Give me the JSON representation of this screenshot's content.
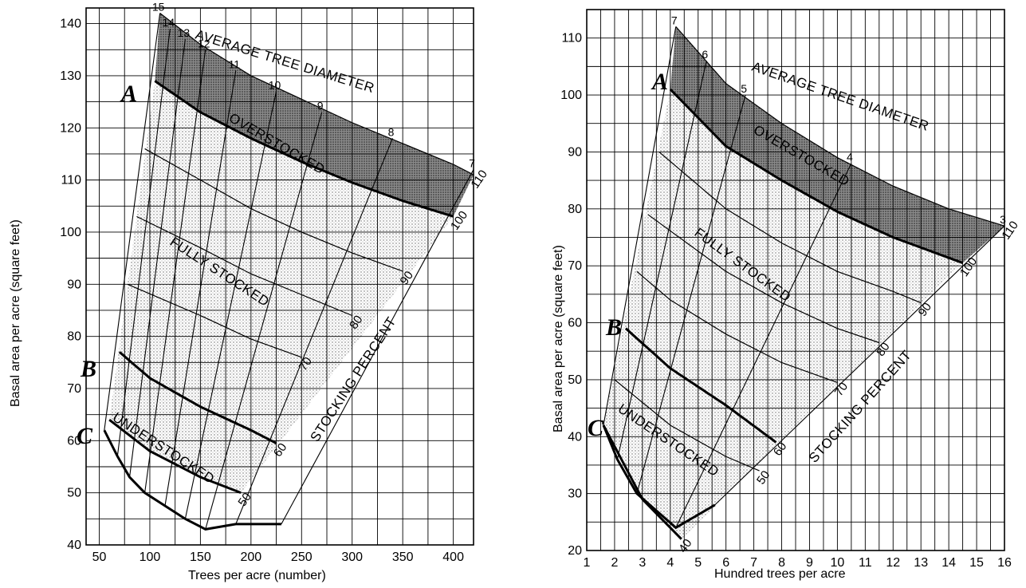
{
  "chart_data": [
    {
      "type": "line",
      "xlabel": "Trees per acre (number)",
      "ylabel": "Basal area per acre (square feet)",
      "xlim": [
        37,
        420
      ],
      "ylim": [
        40,
        143
      ],
      "xticks": [
        50,
        100,
        150,
        200,
        250,
        300,
        350,
        400
      ],
      "yticks": [
        40,
        50,
        60,
        70,
        80,
        90,
        100,
        110,
        120,
        130,
        140
      ],
      "stocking_lines": [
        {
          "name": "110",
          "x": [
            110,
            150,
            200,
            250,
            300,
            350,
            400,
            420
          ],
          "y": [
            142,
            136,
            130,
            125.5,
            121,
            117,
            113,
            111
          ]
        },
        {
          "name": "100",
          "x": [
            105,
            150,
            200,
            250,
            300,
            350,
            400
          ],
          "y": [
            129,
            123,
            118,
            113.5,
            109.5,
            106,
            103
          ]
        },
        {
          "name": "90",
          "x": [
            95,
            150,
            200,
            250,
            300,
            350
          ],
          "y": [
            116,
            110,
            104.5,
            100,
            96,
            92.5
          ]
        },
        {
          "name": "80",
          "x": [
            87,
            150,
            200,
            250,
            300
          ],
          "y": [
            103,
            97,
            92,
            88,
            84
          ]
        },
        {
          "name": "70",
          "x": [
            78,
            150,
            200,
            250
          ],
          "y": [
            90,
            84,
            79.5,
            76
          ]
        },
        {
          "name": "60",
          "x": [
            70,
            100,
            150,
            200,
            225
          ],
          "y": [
            77,
            72,
            66.5,
            62,
            59.5
          ]
        },
        {
          "name": "50",
          "x": [
            60,
            100,
            150,
            190
          ],
          "y": [
            64,
            58,
            53,
            50
          ]
        }
      ],
      "diameter_lines": [
        {
          "name": "15",
          "x": [
            110,
            55
          ],
          "y": [
            142,
            62
          ]
        },
        {
          "name": "14",
          "x": [
            120,
            68
          ],
          "y": [
            139,
            57
          ]
        },
        {
          "name": "13",
          "x": [
            135,
            80
          ],
          "y": [
            137,
            53
          ]
        },
        {
          "name": "12",
          "x": [
            155,
            95
          ],
          "y": [
            135,
            50
          ]
        },
        {
          "name": "11",
          "x": [
            185,
            115
          ],
          "y": [
            131,
            47.5
          ]
        },
        {
          "name": "10",
          "x": [
            225,
            135
          ],
          "y": [
            127,
            45
          ]
        },
        {
          "name": "9",
          "x": [
            270,
            155
          ],
          "y": [
            123,
            43
          ]
        },
        {
          "name": "8",
          "x": [
            340,
            185
          ],
          "y": [
            118,
            44
          ]
        },
        {
          "name": "7",
          "x": [
            420,
            230
          ],
          "y": [
            112,
            44
          ]
        }
      ],
      "stocking_labels": [
        "110",
        "100",
        "90",
        "80",
        "70",
        "60",
        "50"
      ],
      "diameter_labels": [
        "15",
        "14",
        "13",
        "12",
        "11",
        "10",
        "9",
        "8",
        "7"
      ],
      "title_labels": {
        "diameter": "AVERAGE TREE DIAMETER",
        "stocking": "STOCKING PERCENT"
      },
      "zones": {
        "over": "OVERSTOCKED",
        "full": "FULLY STOCKED",
        "under": "UNDERSTOCKED"
      },
      "curve_letters": {
        "a": "A",
        "b": "B",
        "c": "C"
      }
    },
    {
      "type": "line",
      "xlabel": "Hundred trees per acre",
      "ylabel": "Basal area per acre (square feet)",
      "xlim": [
        1,
        16
      ],
      "ylim": [
        20,
        115
      ],
      "xticks": [
        1,
        2,
        3,
        4,
        5,
        6,
        7,
        8,
        9,
        10,
        11,
        12,
        13,
        14,
        15,
        16
      ],
      "yticks": [
        20,
        30,
        40,
        50,
        60,
        70,
        80,
        90,
        100,
        110
      ],
      "stocking_lines": [
        {
          "name": "110",
          "x": [
            4.2,
            6,
            8,
            10,
            12,
            14,
            16
          ],
          "y": [
            112,
            102,
            95,
            89,
            84,
            80,
            77
          ]
        },
        {
          "name": "100",
          "x": [
            4.0,
            6,
            8,
            10,
            12,
            14.5
          ],
          "y": [
            101,
            91,
            85,
            79.5,
            75,
            70.5
          ]
        },
        {
          "name": "90",
          "x": [
            3.6,
            6,
            8,
            10,
            12,
            13
          ],
          "y": [
            90,
            80,
            74,
            69,
            65.5,
            63.5
          ]
        },
        {
          "name": "80",
          "x": [
            3.2,
            6,
            8,
            10,
            11.5
          ],
          "y": [
            79,
            69,
            63.5,
            59,
            56.5
          ]
        },
        {
          "name": "70",
          "x": [
            2.8,
            4,
            6,
            8,
            10
          ],
          "y": [
            69,
            64,
            58,
            53,
            49.5
          ]
        },
        {
          "name": "60",
          "x": [
            2.4,
            4,
            6,
            7.8
          ],
          "y": [
            59,
            52,
            45.5,
            39
          ]
        },
        {
          "name": "50",
          "x": [
            2.0,
            4,
            6,
            7.2
          ],
          "y": [
            50,
            42,
            36.5,
            34
          ]
        },
        {
          "name": "40",
          "x": [
            1.6,
            3,
            4.4
          ],
          "y": [
            42,
            29,
            22
          ]
        }
      ],
      "diameter_lines": [
        {
          "name": "7",
          "x": [
            4.2,
            1.6
          ],
          "y": [
            112,
            42
          ]
        },
        {
          "name": "6",
          "x": [
            5.3,
            2.1
          ],
          "y": [
            106,
            36
          ]
        },
        {
          "name": "5",
          "x": [
            6.7,
            2.8
          ],
          "y": [
            100,
            30
          ]
        },
        {
          "name": "4",
          "x": [
            10.5,
            4.2
          ],
          "y": [
            88,
            24
          ]
        },
        {
          "name": "3",
          "x": [
            16,
            5.6
          ],
          "y": [
            77,
            28
          ]
        }
      ],
      "stocking_labels": [
        "110",
        "100",
        "90",
        "80",
        "70",
        "60",
        "50",
        "40"
      ],
      "diameter_labels": [
        "7",
        "6",
        "5",
        "4",
        "3"
      ],
      "title_labels": {
        "diameter": "AVERAGE TREE DIAMETER",
        "stocking": "STOCKING PERCENT"
      },
      "zones": {
        "over": "OVERSTOCKED",
        "full": "FULLY STOCKED",
        "under": "UNDERSTOCKED"
      },
      "curve_letters": {
        "a": "A",
        "b": "B",
        "c": "C"
      }
    }
  ]
}
